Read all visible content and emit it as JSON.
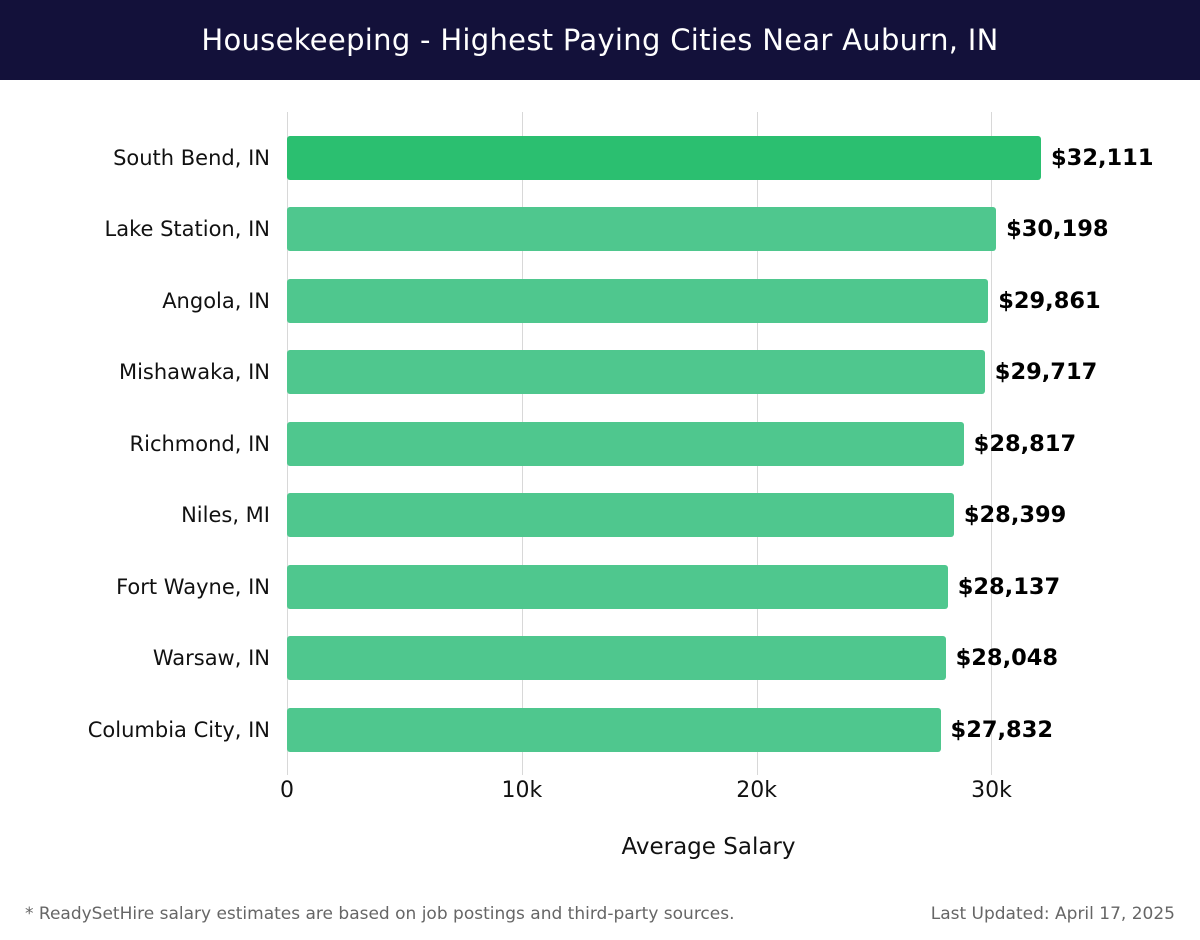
{
  "header": {
    "title": "Housekeeping - Highest Paying Cities Near Auburn, IN"
  },
  "colors": {
    "header_bg": "#13113a",
    "title_text": "#ffffff",
    "bar_highlight": "#2bbf70",
    "bar": "#4fc78e",
    "gridline": "#d8d8d8",
    "value_text": "#000000",
    "footer_text": "#666666"
  },
  "chart_data": {
    "type": "bar",
    "orientation": "horizontal",
    "title": "Housekeeping - Highest Paying Cities Near Auburn, IN",
    "categories": [
      "South Bend, IN",
      "Lake Station, IN",
      "Angola, IN",
      "Mishawaka, IN",
      "Richmond, IN",
      "Niles, MI",
      "Fort Wayne, IN",
      "Warsaw, IN",
      "Columbia City, IN"
    ],
    "values": [
      32111,
      30198,
      29861,
      29717,
      28817,
      28399,
      28137,
      28048,
      27832
    ],
    "value_labels": [
      "$32,111",
      "$30,198",
      "$29,861",
      "$29,717",
      "$28,817",
      "$28,399",
      "$28,137",
      "$28,048",
      "$27,832"
    ],
    "xlabel": "Average Salary",
    "ylabel": "",
    "axis_max": 35900,
    "xlim": [
      0,
      35900
    ],
    "ticks": [
      {
        "value": 0,
        "label": "0"
      },
      {
        "value": 10000,
        "label": "10k"
      },
      {
        "value": 20000,
        "label": "20k"
      },
      {
        "value": 30000,
        "label": "30k"
      }
    ],
    "grid": "vertical",
    "legend_position": "none"
  },
  "footer": {
    "note": "* ReadySetHire salary estimates are based on job postings and third-party sources.",
    "last_updated": "Last Updated: April 17, 2025"
  }
}
